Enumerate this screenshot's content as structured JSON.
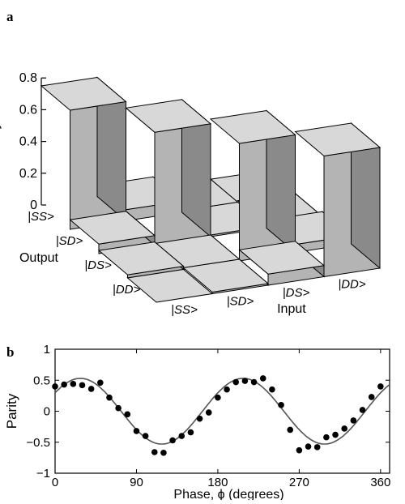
{
  "chart_data": [
    {
      "panel": "a",
      "type": "bar",
      "style": "3d-bar",
      "zlabel": "Probability",
      "zlim": [
        0,
        0.8
      ],
      "zticks": [
        "0",
        "0.2",
        "0.4",
        "0.6",
        "0.8"
      ],
      "input_axis_label": "Input",
      "output_axis_label": "Output",
      "input_states": [
        "|SS>",
        "|SD>",
        "|DS>",
        "|DD>"
      ],
      "output_states": [
        "|SS>",
        "|SD>",
        "|DS>",
        "|DD>"
      ],
      "values": [
        [
          0.75,
          0.07,
          0.01,
          0.0
        ],
        [
          0.06,
          0.71,
          0.01,
          0.02
        ],
        [
          0.02,
          0.01,
          0.74,
          0.05
        ],
        [
          0.0,
          0.01,
          0.07,
          0.76
        ]
      ],
      "colors": {
        "top": "#d8d8d8",
        "front": "#b4b4b4",
        "side": "#8a8a8a",
        "outline": "#000000"
      }
    },
    {
      "panel": "b",
      "type": "scatter",
      "xlabel": "Phase, ϕ (degrees)",
      "ylabel": "Parity",
      "xlim": [
        0,
        370
      ],
      "ylim": [
        -1,
        1
      ],
      "xticks": [
        "0",
        "90",
        "180",
        "270",
        "360"
      ],
      "yticks": [
        "−1",
        "−0.5",
        "0",
        "0.5",
        "1"
      ],
      "grid": false,
      "points": [
        [
          0,
          0.4
        ],
        [
          10,
          0.43
        ],
        [
          20,
          0.44
        ],
        [
          30,
          0.42
        ],
        [
          40,
          0.36
        ],
        [
          50,
          0.46
        ],
        [
          60,
          0.22
        ],
        [
          70,
          0.05
        ],
        [
          80,
          -0.05
        ],
        [
          90,
          -0.32
        ],
        [
          100,
          -0.4
        ],
        [
          110,
          -0.66
        ],
        [
          120,
          -0.67
        ],
        [
          130,
          -0.47
        ],
        [
          140,
          -0.4
        ],
        [
          150,
          -0.34
        ],
        [
          160,
          -0.12
        ],
        [
          170,
          -0.02
        ],
        [
          180,
          0.22
        ],
        [
          190,
          0.35
        ],
        [
          200,
          0.47
        ],
        [
          210,
          0.49
        ],
        [
          220,
          0.47
        ],
        [
          230,
          0.53
        ],
        [
          240,
          0.35
        ],
        [
          250,
          0.1
        ],
        [
          260,
          -0.3
        ],
        [
          270,
          -0.63
        ],
        [
          280,
          -0.57
        ],
        [
          290,
          -0.58
        ],
        [
          300,
          -0.42
        ],
        [
          310,
          -0.38
        ],
        [
          320,
          -0.28
        ],
        [
          330,
          -0.15
        ],
        [
          340,
          0.02
        ],
        [
          350,
          0.23
        ],
        [
          360,
          0.4
        ]
      ],
      "fit": {
        "amplitude": 0.53,
        "period_deg": 180,
        "phase_deg": 28
      },
      "colors": {
        "points": "#000000",
        "fit": "#555555"
      }
    }
  ],
  "panels": {
    "a_label": "a",
    "b_label": "b"
  }
}
